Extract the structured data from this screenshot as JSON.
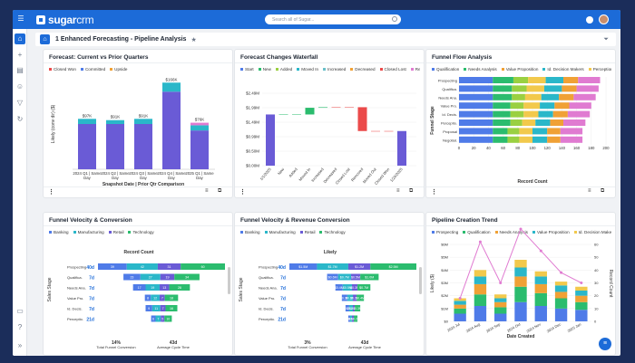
{
  "app": {
    "logo_main": "sugar",
    "logo_crm": "crm",
    "search_placeholder": "Search all of Sugar..."
  },
  "colors": {
    "brand": "#1c6bd8",
    "purple": "#6a5bd6",
    "teal": "#2ab7c9",
    "green": "#2bbc6e",
    "yellow": "#f2c94c",
    "red": "#eb4a4a",
    "orange": "#f0a135",
    "blue": "#4f7be8",
    "lime": "#9ad041"
  },
  "header": {
    "title": "1 Enhanced Forecasting - Pipeline Analysis"
  },
  "dashlets": {
    "d1": {
      "title": "Forecast: Current vs Prior Quarters",
      "legend": [
        "Closed Won",
        "Committed",
        "Upside"
      ]
    },
    "d2": {
      "title": "Forecast Changes Waterfall",
      "legend": [
        "Start",
        "New",
        "Added",
        "Moved In",
        "Increased",
        "Decreased",
        "Closed Lost",
        "Removed"
      ]
    },
    "d3": {
      "title": "Funnel Flow Analysis",
      "legend": [
        "Qualification",
        "Needs Analysis",
        "Value Proposition",
        "Id. Decision Makers",
        "Perception Analysis"
      ]
    },
    "d4": {
      "title": "Funnel Velocity & Conversion",
      "legend": [
        "Banking",
        "Manufacturing",
        "Retail",
        "Technology"
      ],
      "chart_title": "Record Count",
      "stat1_value": "14%",
      "stat1_label": "Total Funnel Conversion",
      "stat2_value": "43d",
      "stat2_label": "Average Cycle Time"
    },
    "d5": {
      "title": "Funnel Velocity & Revenue Conversion",
      "legend": [
        "Banking",
        "Manufacturing",
        "Retail",
        "Technology"
      ],
      "chart_title": "Likely",
      "stat1_value": "3%",
      "stat1_label": "Total Funnel Conversion",
      "stat2_value": "43d",
      "stat2_label": "Average Cycle Time"
    },
    "d6": {
      "title": "Pipeline Creation Trend",
      "legend": [
        "Prospecting",
        "Qualification",
        "Needs Analysis",
        "Value Proposition",
        "Id. Decision Makers"
      ]
    }
  },
  "chart_data": [
    {
      "id": "d1",
      "type": "bar",
      "title": "Forecast: Current vs Prior Quarters",
      "xlabel": "Snapshot Date | Prior Qtr Comparison",
      "ylabel": "Likely (conv dir) ($)",
      "categories": [
        "2024 Q1 | Same Day",
        "2024 Q2 | Same Day",
        "2024 Q3 | Same Day",
        "2024 Q4 | Same Day",
        "2025 Q1 | Same Day"
      ],
      "totals": [
        "$97K",
        "$91K",
        "$91K",
        "$166K",
        "$76K"
      ],
      "series": [
        {
          "name": "Closed Won",
          "values": [
            70,
            70,
            70,
            120,
            60
          ]
        },
        {
          "name": "Committed",
          "values": [
            8,
            6,
            8,
            14,
            8
          ]
        },
        {
          "name": "Upside",
          "values": [
            0,
            0,
            0,
            0,
            4
          ]
        }
      ]
    },
    {
      "id": "d2",
      "type": "bar",
      "title": "Forecast Changes Waterfall",
      "ylabel": "",
      "categories": [
        "1/1/2025",
        "New",
        "Added",
        "Moved In",
        "Increased",
        "Decreased",
        "Closed Lost",
        "Removed",
        "Moved Out",
        "Closed Won",
        "1/24/2025"
      ],
      "yticks": [
        "$0.00M",
        "$0.50M",
        "$0.99M",
        "$1.49M",
        "$1.99M",
        "$2.49M"
      ],
      "ylim": [
        0,
        2.49
      ],
      "start": [
        0,
        1.76,
        1.76,
        1.76,
        1.99,
        2.01,
        2.01,
        2.01,
        1.19,
        1.19,
        0
      ],
      "end": [
        1.76,
        1.76,
        1.76,
        1.99,
        2.01,
        2.01,
        2.01,
        1.19,
        1.19,
        1.19,
        1.19
      ]
    },
    {
      "id": "d3",
      "type": "stacked-bar-horizontal",
      "xlabel": "Record Count",
      "ylabel": "Funnel Stage",
      "categories": [
        "Prospecting",
        "Qualifica.",
        "Needs Ana.",
        "Value Pro.",
        "Id. Decis.",
        "Perceptio.",
        "Proposal",
        "Negotiat."
      ],
      "xticks": [
        "0",
        "20",
        "40",
        "60",
        "80",
        "100",
        "120",
        "140",
        "160",
        "180",
        "200"
      ],
      "xlim": [
        0,
        200
      ],
      "series": [
        {
          "name": "Qualification",
          "values": [
            46,
            46,
            46,
            46,
            46,
            46,
            46,
            46
          ]
        },
        {
          "name": "Needs Analysis",
          "values": [
            28,
            26,
            26,
            24,
            24,
            24,
            20,
            20
          ]
        },
        {
          "name": "Value Proposition",
          "values": [
            20,
            20,
            18,
            18,
            18,
            16,
            16,
            16
          ]
        },
        {
          "name": "Id. Decision Makers",
          "values": [
            24,
            24,
            22,
            22,
            20,
            18,
            18,
            18
          ]
        },
        {
          "name": "Perception Analysis",
          "values": [
            24,
            24,
            24,
            20,
            20,
            20,
            20,
            20
          ]
        },
        {
          "name": "Proposal",
          "values": [
            20,
            20,
            20,
            20,
            20,
            18,
            18,
            18
          ]
        },
        {
          "name": "Negotiation",
          "values": [
            30,
            30,
            30,
            30,
            30,
            30,
            30,
            30
          ]
        }
      ]
    },
    {
      "id": "d4",
      "type": "stacked-bar-horizontal",
      "title": "Record Count",
      "ylabel": "Sales Stage",
      "categories": [
        "Prospecting",
        "Qualifica.",
        "Needs Ana.",
        "Value Pro.",
        "Id. Decis.",
        "Perceptio."
      ],
      "days": [
        "40d",
        "7d",
        "7d",
        "7d",
        "7d",
        "21d"
      ],
      "series": [
        {
          "name": "Banking",
          "values": [
            39,
            23,
            17,
            8,
            9,
            6
          ],
          "labels": [
            "39",
            "23",
            "17",
            "8",
            "9",
            "6"
          ]
        },
        {
          "name": "Manufacturing",
          "values": [
            42,
            27,
            19,
            12,
            11,
            7
          ],
          "labels": [
            "42",
            "27",
            "19",
            "12",
            "11",
            "7"
          ]
        },
        {
          "name": "Retail",
          "values": [
            31,
            19,
            13,
            7,
            7,
            5
          ],
          "labels": [
            "31",
            "19",
            "13",
            "7",
            "7",
            "5"
          ]
        },
        {
          "name": "Technology",
          "values": [
            60,
            34,
            28,
            18,
            16,
            10
          ],
          "labels": [
            "60",
            "34",
            "28",
            "18",
            "16",
            "10"
          ]
        }
      ]
    },
    {
      "id": "d5",
      "type": "stacked-bar-horizontal",
      "title": "Likely",
      "ylabel": "Sales Stage",
      "categories": [
        "Prospecting",
        "Qualifica.",
        "Needs Ana.",
        "Value Pro.",
        "Id. Decis.",
        "Perceptio."
      ],
      "days": [
        "40d",
        "7d",
        "7d",
        "7d",
        "7d",
        "21d"
      ],
      "series": [
        {
          "name": "Banking",
          "values": [
            1.5,
            0.6,
            0.4,
            0.3,
            0.2,
            0.1
          ],
          "labels": [
            "$1.5M",
            "$0.6M",
            "$0.4M",
            "$0.3M",
            "$0.2M",
            "$0.1M"
          ]
        },
        {
          "name": "Manufacturing",
          "values": [
            1.7,
            0.7,
            0.5,
            0.3,
            0.2,
            0.1
          ],
          "labels": [
            "$1.7M",
            "$0.7M",
            "$0.5M",
            "$0.3M",
            "$0.2M",
            "$0.1M"
          ]
        },
        {
          "name": "Retail",
          "values": [
            1.2,
            0.5,
            0.3,
            0.2,
            0.1,
            0.1
          ],
          "labels": [
            "$1.2M",
            "$0.5M",
            "$0.3M",
            "$0.2M",
            "$0.1M",
            "$0.1M"
          ]
        },
        {
          "name": "Technology",
          "values": [
            2.5,
            1.0,
            0.7,
            0.4,
            0.3,
            0.2
          ],
          "labels": [
            "$2.5M",
            "$1.0M",
            "$0.7M",
            "$0.4M",
            "$0.3M",
            "$0.2M"
          ]
        }
      ]
    },
    {
      "id": "d6",
      "type": "bar",
      "title": "Pipeline Creation Trend",
      "xlabel": "Date Created",
      "ylabel": "Likely ($)",
      "y2label": "Record Count",
      "categories": [
        "2024 Jul",
        "2024 Aug",
        "2024 Sep",
        "2024 Oct",
        "2024 Nov",
        "2024 Dec",
        "2025 Jan"
      ],
      "yticks": [
        "$0",
        "$1M",
        "$2M",
        "$3M",
        "$4M",
        "$5M",
        "$6M"
      ],
      "y2ticks": [
        "0",
        "10",
        "20",
        "30",
        "40",
        "50",
        "60"
      ],
      "series": [
        {
          "name": "Prospecting",
          "values": [
            0.6,
            1.2,
            0.6,
            1.5,
            1.2,
            1.0,
            0.9
          ]
        },
        {
          "name": "Qualification",
          "values": [
            0.4,
            0.9,
            0.5,
            1.2,
            1.0,
            0.8,
            0.6
          ]
        },
        {
          "name": "Needs Analysis",
          "values": [
            0.3,
            0.8,
            0.4,
            0.8,
            0.7,
            0.5,
            0.5
          ]
        },
        {
          "name": "Value Proposition",
          "values": [
            0.3,
            0.6,
            0.3,
            0.7,
            0.6,
            0.5,
            0.4
          ]
        },
        {
          "name": "Id. Decision Makers",
          "values": [
            0.2,
            0.5,
            0.3,
            0.6,
            0.4,
            0.3,
            0.3
          ]
        }
      ],
      "line": {
        "name": "Record Count",
        "values": [
          18,
          62,
          30,
          72,
          55,
          38,
          30
        ]
      }
    }
  ]
}
